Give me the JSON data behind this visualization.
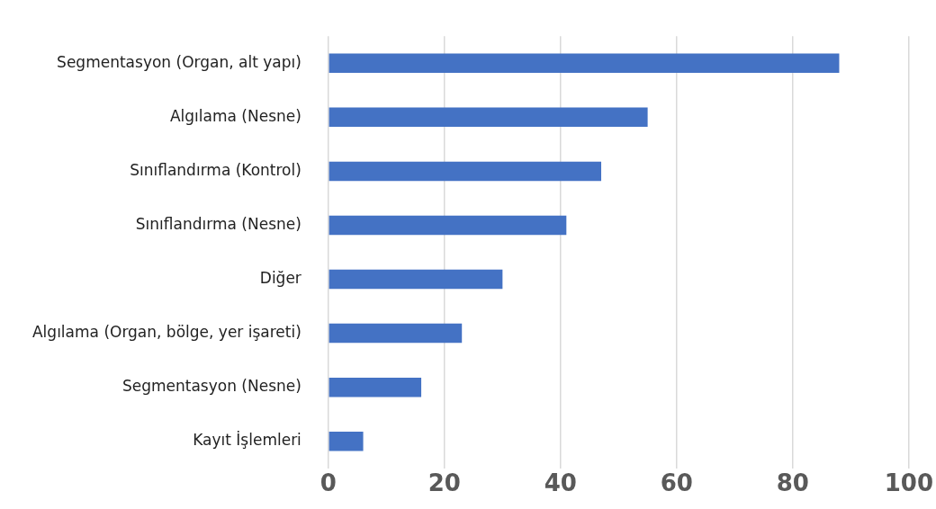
{
  "chart_data": {
    "type": "bar",
    "orientation": "horizontal",
    "categories": [
      "Segmentasyon (Organ, alt yapı)",
      "Algılama (Nesne)",
      "Sınıflandırma (Kontrol)",
      "Sınıflandırma (Nesne)",
      "Diğer",
      "Algılama (Organ, bölge, yer işareti)",
      "Segmentasyon (Nesne)",
      "Kayıt İşlemleri"
    ],
    "values": [
      88,
      55,
      47,
      41,
      30,
      23,
      16,
      6
    ],
    "color": "#4472c4",
    "xlim": [
      0,
      100
    ],
    "xticks": [
      0,
      20,
      40,
      60,
      80,
      100
    ],
    "grid": "x",
    "legend": false
  }
}
